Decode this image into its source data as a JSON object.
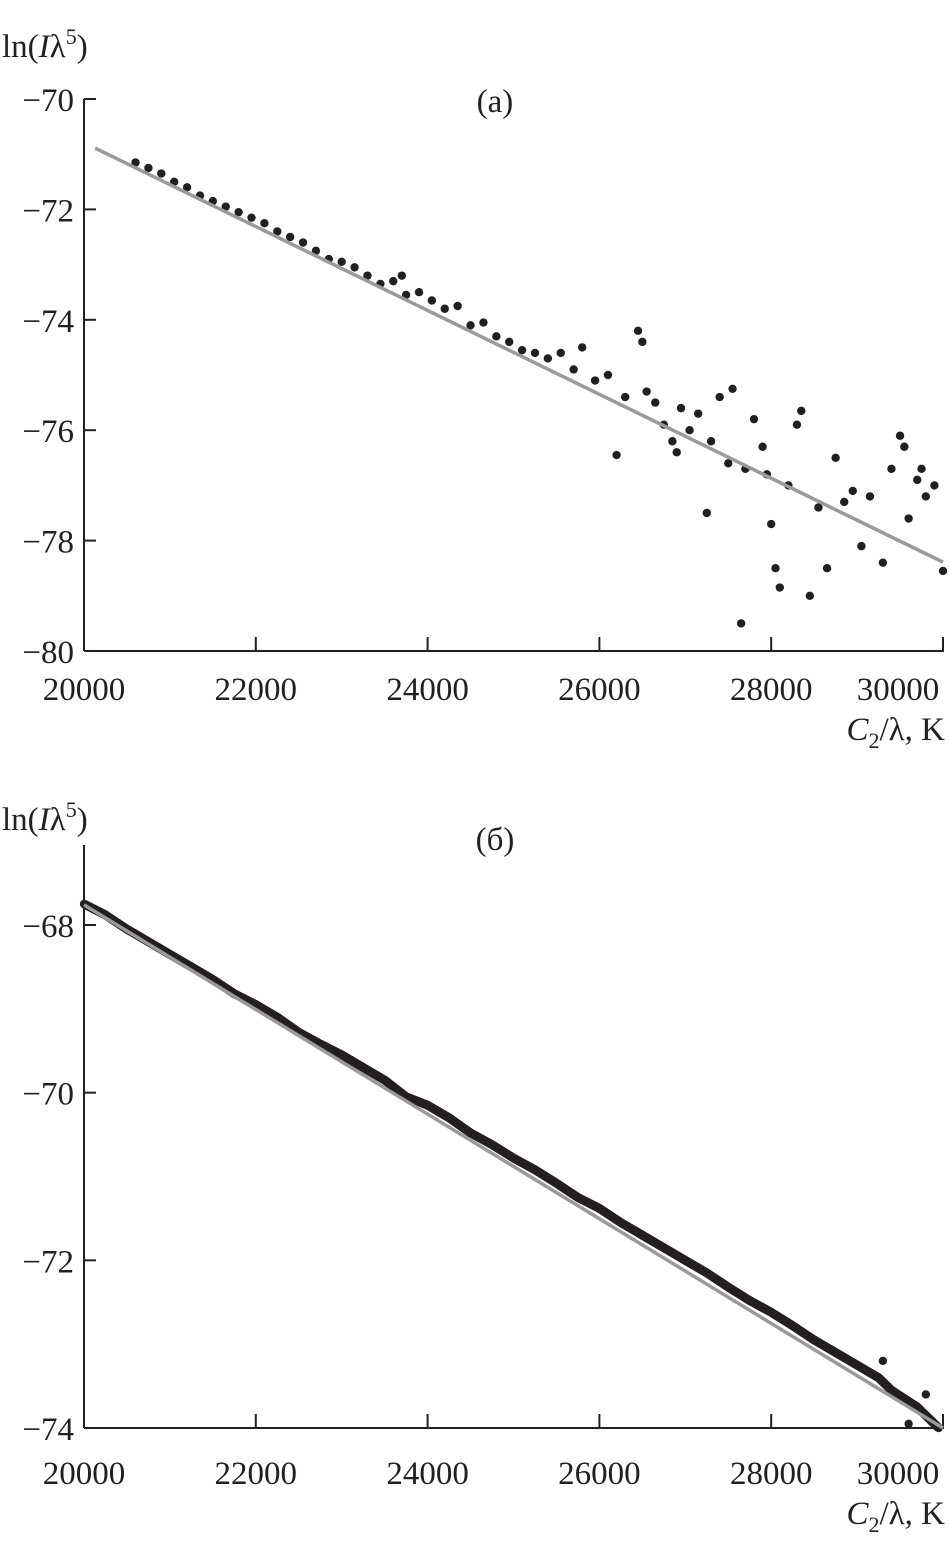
{
  "chart_data": [
    {
      "type": "scatter",
      "panel_label": "(a)",
      "ylabel_prefix": "ln(",
      "ylabel_italic": "I",
      "ylabel_lambda": "λ",
      "ylabel_sup": "5",
      "ylabel_suffix": ")",
      "xlabel_italic": "C",
      "xlabel_sub": "2",
      "xlabel_rest": "/λ, K",
      "xlim": [
        20000,
        30000
      ],
      "ylim": [
        -80,
        -70
      ],
      "xticks": [
        20000,
        22000,
        24000,
        26000,
        28000,
        30000
      ],
      "xtick_labels": [
        "20000",
        "22000",
        "24000",
        "26000",
        "28000",
        "30000"
      ],
      "yticks": [
        -70,
        -72,
        -74,
        -76,
        -78,
        -80
      ],
      "ytick_labels": [
        "−70",
        "−72",
        "−74",
        "−76",
        "−78",
        "−80"
      ],
      "grid": false,
      "colors": {
        "points": "#231f20",
        "fit": "#9a9a9a"
      },
      "fit_line": {
        "x": [
          20130,
          30000
        ],
        "y": [
          -70.89,
          -78.39
        ]
      },
      "points": {
        "x": [
          20600,
          20750,
          20900,
          21050,
          21200,
          21350,
          21500,
          21650,
          21800,
          21950,
          22100,
          22250,
          22400,
          22550,
          22700,
          22850,
          23000,
          23150,
          23300,
          23450,
          23600,
          23700,
          23750,
          23900,
          24050,
          24200,
          24350,
          24500,
          24650,
          24800,
          24950,
          25100,
          25250,
          25400,
          25550,
          25700,
          25800,
          25950,
          26100,
          26200,
          26300,
          26450,
          26500,
          26550,
          26650,
          26750,
          26850,
          26950,
          27050,
          27150,
          27250,
          27300,
          27400,
          27500,
          27550,
          27650,
          27700,
          27800,
          27900,
          28000,
          28050,
          28100,
          28200,
          28350,
          28450,
          28550,
          28650,
          28750,
          28850,
          28950,
          29050,
          29150,
          29300,
          29400,
          29500,
          29600,
          29700,
          29800,
          29900,
          30000,
          29550,
          29750,
          28300,
          27950,
          26900
        ],
        "y": [
          -71.15,
          -71.25,
          -71.35,
          -71.5,
          -71.6,
          -71.75,
          -71.85,
          -71.95,
          -72.05,
          -72.15,
          -72.25,
          -72.4,
          -72.5,
          -72.6,
          -72.75,
          -72.9,
          -72.95,
          -73.05,
          -73.2,
          -73.35,
          -73.3,
          -73.2,
          -73.55,
          -73.5,
          -73.65,
          -73.8,
          -73.75,
          -74.1,
          -74.05,
          -74.3,
          -74.4,
          -74.55,
          -74.6,
          -74.7,
          -74.6,
          -74.9,
          -74.5,
          -75.1,
          -75.0,
          -76.45,
          -75.4,
          -74.2,
          -74.4,
          -75.3,
          -75.5,
          -75.9,
          -76.2,
          -75.6,
          -76.0,
          -75.7,
          -77.5,
          -76.2,
          -75.4,
          -76.6,
          -75.25,
          -79.5,
          -76.7,
          -75.8,
          -76.3,
          -77.7,
          -78.5,
          -78.85,
          -77.0,
          -75.65,
          -79.0,
          -77.4,
          -78.5,
          -76.5,
          -77.3,
          -77.1,
          -78.1,
          -77.2,
          -78.4,
          -76.7,
          -76.1,
          -77.6,
          -76.9,
          -77.2,
          -77.0,
          -78.55,
          -76.3,
          -76.7,
          -75.9,
          -76.8,
          -76.4
        ]
      }
    },
    {
      "type": "scatter",
      "panel_label": "(б)",
      "ylabel_prefix": "ln(",
      "ylabel_italic": "I",
      "ylabel_lambda": "λ",
      "ylabel_sup": "5",
      "ylabel_suffix": ")",
      "xlabel_italic": "C",
      "xlabel_sub": "2",
      "xlabel_rest": "/λ, K",
      "xlim": [
        20000,
        30000
      ],
      "ylim": [
        -74,
        -67
      ],
      "xticks": [
        20000,
        22000,
        24000,
        26000,
        28000,
        30000
      ],
      "xtick_labels": [
        "20000",
        "22000",
        "24000",
        "26000",
        "28000",
        "30000"
      ],
      "yticks": [
        -68,
        -70,
        -72,
        -74
      ],
      "ytick_labels": [
        "−68",
        "−70",
        "−72",
        "−74"
      ],
      "grid": false,
      "colors": {
        "points": "#231f20",
        "fit": "#9a9a9a"
      },
      "fit_line": {
        "x": [
          20000,
          30000
        ],
        "y": [
          -67.76,
          -74.0
        ]
      },
      "points": {
        "x": [
          20000,
          20250,
          20500,
          20750,
          21000,
          21250,
          21500,
          21750,
          22000,
          22250,
          22500,
          22750,
          23000,
          23250,
          23500,
          23750,
          24000,
          24250,
          24500,
          24750,
          25000,
          25250,
          25500,
          25750,
          26000,
          26250,
          26500,
          26750,
          27000,
          27250,
          27500,
          27750,
          28000,
          28250,
          28500,
          28750,
          29000,
          29250,
          29400,
          29550,
          29700,
          29850,
          29950,
          29300,
          29600,
          29800
        ],
        "y": [
          -67.75,
          -67.88,
          -68.05,
          -68.2,
          -68.35,
          -68.5,
          -68.65,
          -68.82,
          -68.95,
          -69.1,
          -69.28,
          -69.42,
          -69.55,
          -69.7,
          -69.85,
          -70.05,
          -70.15,
          -70.3,
          -70.48,
          -70.62,
          -70.78,
          -70.92,
          -71.08,
          -71.25,
          -71.38,
          -71.55,
          -71.7,
          -71.85,
          -72.0,
          -72.15,
          -72.32,
          -72.48,
          -72.62,
          -72.78,
          -72.95,
          -73.1,
          -73.25,
          -73.4,
          -73.55,
          -73.65,
          -73.75,
          -73.9,
          -74.0,
          -73.2,
          -73.95,
          -73.6
        ]
      }
    }
  ]
}
